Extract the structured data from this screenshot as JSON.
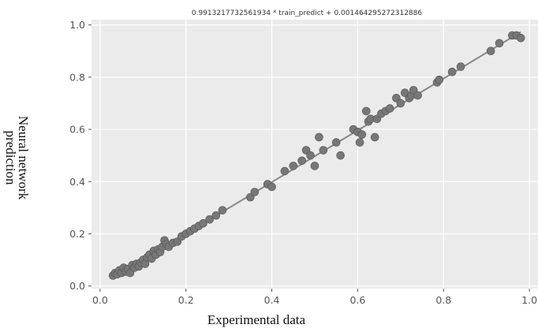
{
  "chart_data": {
    "type": "scatter",
    "title": "0.9913217732561934 * train_predict + 0.001464295272312886",
    "xlabel": "Experimental data",
    "ylabel_lines": [
      "Neural network",
      "prediction"
    ],
    "xlim": [
      -0.02,
      1.02
    ],
    "ylim": [
      -0.01,
      1.02
    ],
    "x_ticks": [
      0.0,
      0.2,
      0.4,
      0.6,
      0.8,
      1.0
    ],
    "y_ticks": [
      0.0,
      0.2,
      0.4,
      0.6,
      0.8,
      1.0
    ],
    "x_tick_labels": [
      "0.0",
      "0.2",
      "0.4",
      "0.6",
      "0.8",
      "1.0"
    ],
    "y_tick_labels": [
      "0.0",
      "0.2",
      "0.4",
      "0.6",
      "0.8",
      "1.0"
    ],
    "grid": true,
    "fit_line": {
      "slope": 0.9913217732561934,
      "intercept": 0.001464295272312886,
      "x_range": [
        0.03,
        0.98
      ],
      "color": "#888888"
    },
    "colors": {
      "plot_background": "#ebebeb",
      "grid": "#ffffff",
      "points": "#777777",
      "point_edge": "#555555"
    },
    "points": [
      {
        "x": 0.03,
        "y": 0.04
      },
      {
        "x": 0.035,
        "y": 0.05
      },
      {
        "x": 0.04,
        "y": 0.045
      },
      {
        "x": 0.045,
        "y": 0.06
      },
      {
        "x": 0.05,
        "y": 0.05
      },
      {
        "x": 0.055,
        "y": 0.07
      },
      {
        "x": 0.06,
        "y": 0.055
      },
      {
        "x": 0.065,
        "y": 0.065
      },
      {
        "x": 0.07,
        "y": 0.05
      },
      {
        "x": 0.075,
        "y": 0.08
      },
      {
        "x": 0.08,
        "y": 0.07
      },
      {
        "x": 0.085,
        "y": 0.085
      },
      {
        "x": 0.09,
        "y": 0.075
      },
      {
        "x": 0.095,
        "y": 0.09
      },
      {
        "x": 0.1,
        "y": 0.1
      },
      {
        "x": 0.105,
        "y": 0.085
      },
      {
        "x": 0.11,
        "y": 0.11
      },
      {
        "x": 0.115,
        "y": 0.12
      },
      {
        "x": 0.12,
        "y": 0.105
      },
      {
        "x": 0.125,
        "y": 0.135
      },
      {
        "x": 0.13,
        "y": 0.12
      },
      {
        "x": 0.135,
        "y": 0.14
      },
      {
        "x": 0.14,
        "y": 0.13
      },
      {
        "x": 0.145,
        "y": 0.15
      },
      {
        "x": 0.15,
        "y": 0.175
      },
      {
        "x": 0.155,
        "y": 0.16
      },
      {
        "x": 0.16,
        "y": 0.15
      },
      {
        "x": 0.17,
        "y": 0.165
      },
      {
        "x": 0.18,
        "y": 0.17
      },
      {
        "x": 0.19,
        "y": 0.19
      },
      {
        "x": 0.2,
        "y": 0.2
      },
      {
        "x": 0.21,
        "y": 0.21
      },
      {
        "x": 0.22,
        "y": 0.22
      },
      {
        "x": 0.23,
        "y": 0.23
      },
      {
        "x": 0.24,
        "y": 0.24
      },
      {
        "x": 0.255,
        "y": 0.255
      },
      {
        "x": 0.27,
        "y": 0.27
      },
      {
        "x": 0.285,
        "y": 0.29
      },
      {
        "x": 0.35,
        "y": 0.34
      },
      {
        "x": 0.36,
        "y": 0.36
      },
      {
        "x": 0.39,
        "y": 0.39
      },
      {
        "x": 0.4,
        "y": 0.38
      },
      {
        "x": 0.43,
        "y": 0.44
      },
      {
        "x": 0.45,
        "y": 0.46
      },
      {
        "x": 0.47,
        "y": 0.48
      },
      {
        "x": 0.48,
        "y": 0.52
      },
      {
        "x": 0.49,
        "y": 0.5
      },
      {
        "x": 0.5,
        "y": 0.46
      },
      {
        "x": 0.51,
        "y": 0.57
      },
      {
        "x": 0.52,
        "y": 0.52
      },
      {
        "x": 0.55,
        "y": 0.55
      },
      {
        "x": 0.56,
        "y": 0.5
      },
      {
        "x": 0.59,
        "y": 0.6
      },
      {
        "x": 0.6,
        "y": 0.59
      },
      {
        "x": 0.605,
        "y": 0.55
      },
      {
        "x": 0.61,
        "y": 0.58
      },
      {
        "x": 0.62,
        "y": 0.67
      },
      {
        "x": 0.625,
        "y": 0.63
      },
      {
        "x": 0.63,
        "y": 0.64
      },
      {
        "x": 0.64,
        "y": 0.57
      },
      {
        "x": 0.645,
        "y": 0.64
      },
      {
        "x": 0.655,
        "y": 0.66
      },
      {
        "x": 0.665,
        "y": 0.67
      },
      {
        "x": 0.675,
        "y": 0.68
      },
      {
        "x": 0.69,
        "y": 0.72
      },
      {
        "x": 0.7,
        "y": 0.7
      },
      {
        "x": 0.71,
        "y": 0.74
      },
      {
        "x": 0.72,
        "y": 0.72
      },
      {
        "x": 0.725,
        "y": 0.73
      },
      {
        "x": 0.73,
        "y": 0.75
      },
      {
        "x": 0.74,
        "y": 0.73
      },
      {
        "x": 0.785,
        "y": 0.78
      },
      {
        "x": 0.79,
        "y": 0.79
      },
      {
        "x": 0.82,
        "y": 0.82
      },
      {
        "x": 0.84,
        "y": 0.84
      },
      {
        "x": 0.91,
        "y": 0.9
      },
      {
        "x": 0.93,
        "y": 0.93
      },
      {
        "x": 0.96,
        "y": 0.96
      },
      {
        "x": 0.97,
        "y": 0.96
      },
      {
        "x": 0.98,
        "y": 0.95
      }
    ]
  }
}
